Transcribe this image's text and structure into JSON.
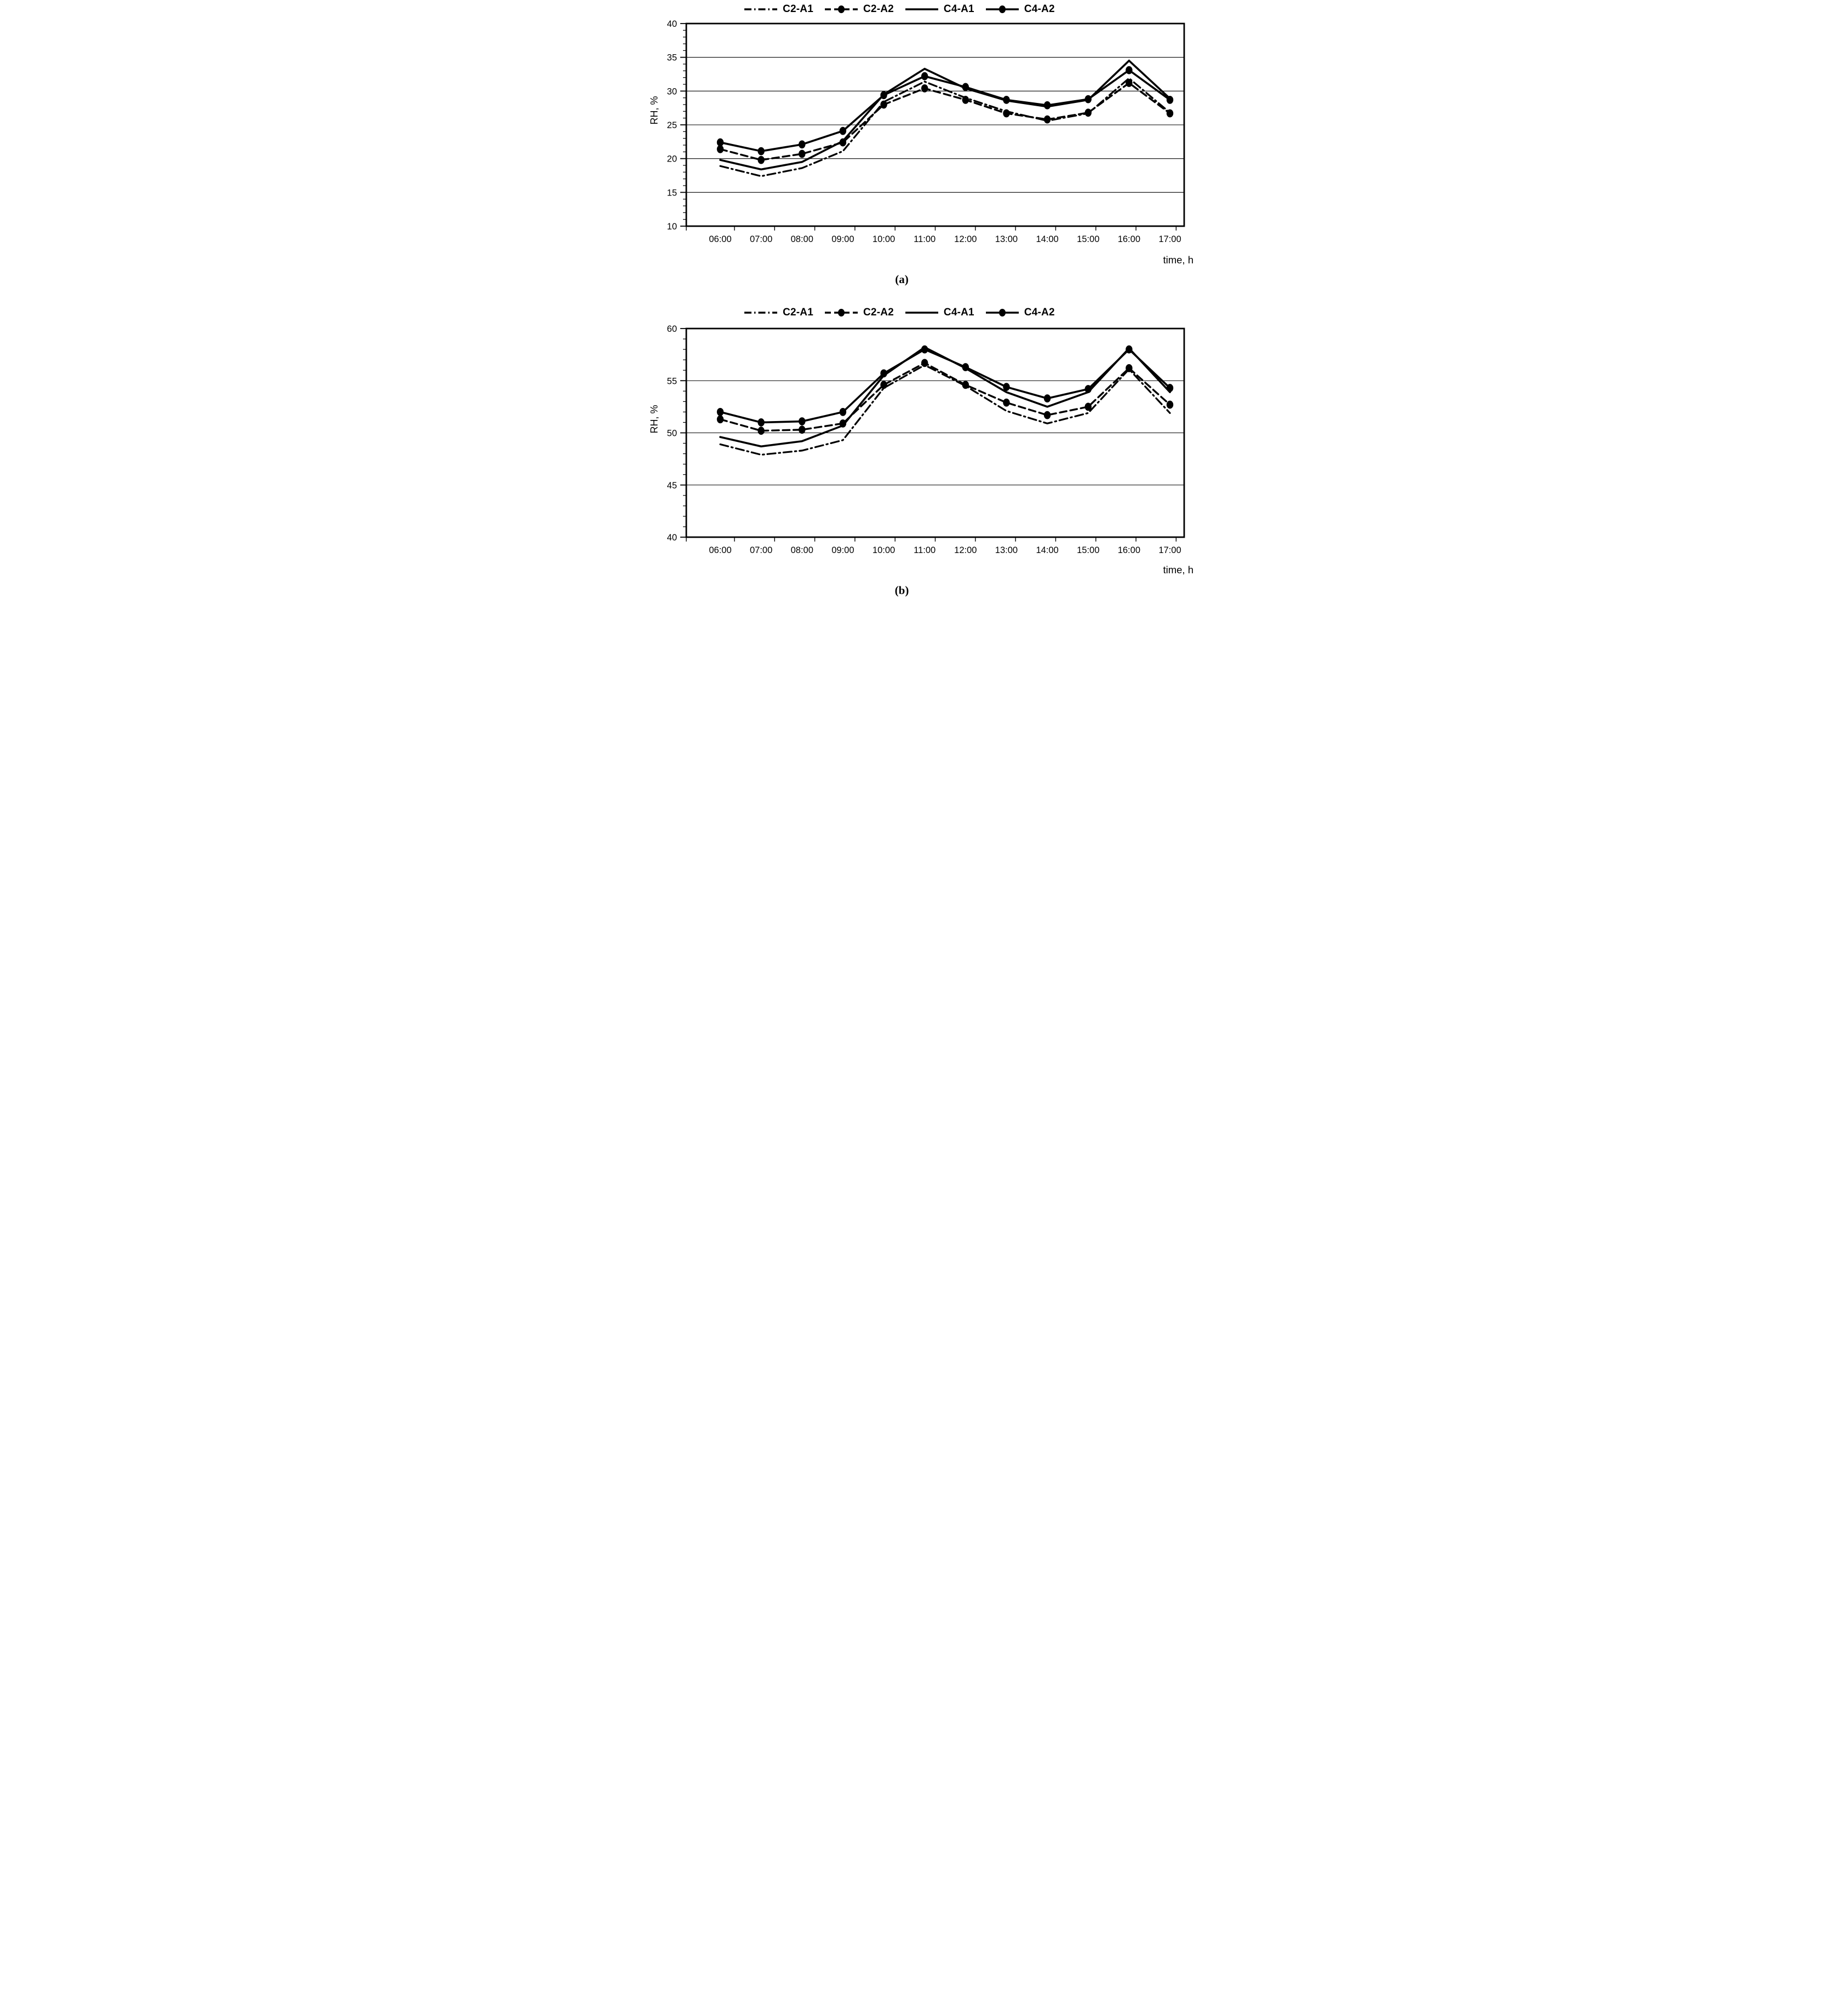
{
  "figure": {
    "background": "#ffffff",
    "line_color": "#000000"
  },
  "charts": [
    {
      "caption": "(a)",
      "y_axis_label": "RH, %",
      "x_axis_label": "time, h",
      "legend": [
        {
          "label": "C2-A1",
          "style": "dashdot"
        },
        {
          "label": "C2-A2",
          "style": "dashed-marker"
        },
        {
          "label": "C4-A1",
          "style": "solid"
        },
        {
          "label": "C4-A2",
          "style": "solid-marker"
        }
      ],
      "chart_data": {
        "type": "line",
        "title": "",
        "xlabel": "time, h",
        "ylabel": "RH, %",
        "ylim": [
          10,
          40
        ],
        "ytick_major_step": 5,
        "ytick_minor_step": 1,
        "grid": "horizontal-major",
        "legend_position": "top",
        "categories": [
          "06:00",
          "07:00",
          "08:00",
          "09:00",
          "10:00",
          "11:00",
          "12:00",
          "13:00",
          "14:00",
          "15:00",
          "16:00",
          "17:00"
        ],
        "series": [
          {
            "name": "C2-A1",
            "line": "dashdot",
            "marker": false,
            "values": [
              18.9,
              17.4,
              18.6,
              21.1,
              28.4,
              31.4,
              29.0,
              27.0,
              25.6,
              26.7,
              31.9,
              26.8
            ]
          },
          {
            "name": "C2-A2",
            "line": "dashed",
            "marker": true,
            "values": [
              21.4,
              19.8,
              20.7,
              22.4,
              28.0,
              30.4,
              28.7,
              26.7,
              25.8,
              26.8,
              31.2,
              26.7
            ]
          },
          {
            "name": "C4-A1",
            "line": "solid",
            "marker": false,
            "values": [
              19.8,
              18.4,
              19.5,
              22.6,
              29.5,
              33.3,
              30.4,
              28.6,
              27.7,
              28.7,
              34.5,
              28.9
            ]
          },
          {
            "name": "C4-A2",
            "line": "solid",
            "marker": true,
            "values": [
              22.4,
              21.1,
              22.1,
              24.1,
              29.4,
              32.2,
              30.6,
              28.7,
              27.9,
              28.8,
              33.1,
              28.7
            ]
          }
        ]
      }
    },
    {
      "caption": "(b)",
      "y_axis_label": "RH, %",
      "x_axis_label": "time, h",
      "legend": [
        {
          "label": "C2-A1",
          "style": "dashdot"
        },
        {
          "label": "C2-A2",
          "style": "dashed-marker"
        },
        {
          "label": "C4-A1",
          "style": "solid"
        },
        {
          "label": "C4-A2",
          "style": "solid-marker"
        }
      ],
      "chart_data": {
        "type": "line",
        "title": "",
        "xlabel": "time, h",
        "ylabel": "RH, %",
        "ylim": [
          40,
          60
        ],
        "ytick_major_step": 5,
        "ytick_minor_step": 1,
        "grid": "horizontal-major",
        "legend_position": "top",
        "categories": [
          "06:00",
          "07:00",
          "08:00",
          "09:00",
          "10:00",
          "11:00",
          "12:00",
          "13:00",
          "14:00",
          "15:00",
          "16:00",
          "17:00"
        ],
        "series": [
          {
            "name": "C2-A1",
            "line": "dashdot",
            "marker": false,
            "values": [
              48.9,
              47.9,
              48.3,
              49.3,
              54.3,
              56.5,
              54.5,
              52.1,
              50.9,
              51.9,
              56.1,
              51.9
            ]
          },
          {
            "name": "C2-A2",
            "line": "dashed",
            "marker": true,
            "values": [
              51.3,
              50.2,
              50.3,
              50.9,
              54.6,
              56.7,
              54.6,
              52.9,
              51.7,
              52.5,
              56.2,
              52.7
            ]
          },
          {
            "name": "C4-A1",
            "line": "solid",
            "marker": false,
            "values": [
              49.6,
              48.7,
              49.2,
              50.7,
              55.5,
              58.2,
              56.2,
              53.9,
              52.5,
              53.9,
              58.1,
              53.9
            ]
          },
          {
            "name": "C4-A2",
            "line": "solid",
            "marker": true,
            "values": [
              52.0,
              51.0,
              51.1,
              52.0,
              55.7,
              58.0,
              56.3,
              54.4,
              53.3,
              54.2,
              58.0,
              54.3
            ]
          }
        ]
      }
    }
  ]
}
